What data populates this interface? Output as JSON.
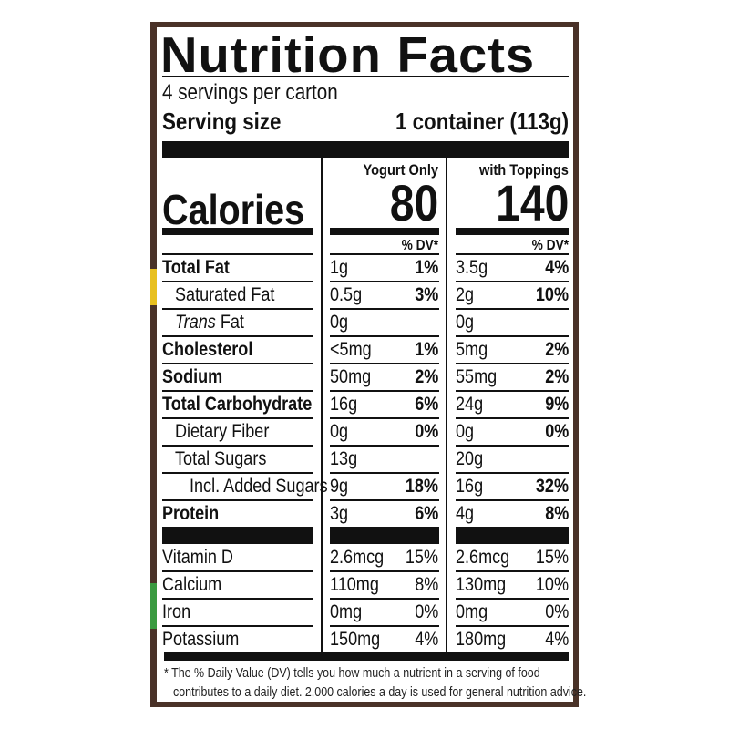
{
  "title": "Nutrition Facts",
  "servings": "4 servings per carton",
  "serving_size_label": "Serving size",
  "serving_size_value": "1 container (113g)",
  "calories_label": "Calories",
  "columns": [
    {
      "header": "Yogurt Only",
      "calories": "80",
      "dv_header": "% DV*"
    },
    {
      "header": "with Toppings",
      "calories": "140",
      "dv_header": "% DV*"
    }
  ],
  "nutrients": [
    {
      "name": "Total Fat",
      "bold": true,
      "indent": 0,
      "v1": "1g",
      "d1": "1%",
      "v2": "3.5g",
      "d2": "4%"
    },
    {
      "name": "Saturated Fat",
      "bold": false,
      "indent": 1,
      "v1": "0.5g",
      "d1": "3%",
      "v2": "2g",
      "d2": "10%"
    },
    {
      "name_italic": "Trans",
      "name": " Fat",
      "bold": false,
      "indent": 1,
      "v1": "0g",
      "d1": "",
      "v2": "0g",
      "d2": ""
    },
    {
      "name": "Cholesterol",
      "bold": true,
      "indent": 0,
      "v1": "<5mg",
      "d1": "1%",
      "v2": "5mg",
      "d2": "2%"
    },
    {
      "name": "Sodium",
      "bold": true,
      "indent": 0,
      "v1": "50mg",
      "d1": "2%",
      "v2": "55mg",
      "d2": "2%"
    },
    {
      "name": "Total Carbohydrate",
      "bold": true,
      "indent": 0,
      "v1": "16g",
      "d1": "6%",
      "v2": "24g",
      "d2": "9%"
    },
    {
      "name": "Dietary Fiber",
      "bold": false,
      "indent": 1,
      "v1": "0g",
      "d1": "0%",
      "v2": "0g",
      "d2": "0%"
    },
    {
      "name": "Total Sugars",
      "bold": false,
      "indent": 1,
      "v1": "13g",
      "d1": "",
      "v2": "20g",
      "d2": ""
    },
    {
      "name": "Incl. Added Sugars",
      "bold": false,
      "indent": 2,
      "v1": "9g",
      "d1": "18%",
      "v2": "16g",
      "d2": "32%"
    },
    {
      "name": "Protein",
      "bold": true,
      "indent": 0,
      "v1": "3g",
      "d1": "6%",
      "v2": "4g",
      "d2": "8%"
    }
  ],
  "vitamins": [
    {
      "name": "Vitamin D",
      "v1": "2.6mcg",
      "d1": "15%",
      "v2": "2.6mcg",
      "d2": "15%"
    },
    {
      "name": "Calcium",
      "v1": "110mg",
      "d1": "8%",
      "v2": "130mg",
      "d2": "10%"
    },
    {
      "name": "Iron",
      "v1": "0mg",
      "d1": "0%",
      "v2": "0mg",
      "d2": "0%"
    },
    {
      "name": "Potassium",
      "v1": "150mg",
      "d1": "4%",
      "v2": "180mg",
      "d2": "4%"
    }
  ],
  "footnote_line1": "* The % Daily Value (DV) tells you how much a nutrient in a serving of food",
  "footnote_line2": "contributes to a daily diet. 2,000 calories a day is used for general nutrition advice.",
  "colors": {
    "frame": "#4a3228",
    "ink": "#111111"
  }
}
